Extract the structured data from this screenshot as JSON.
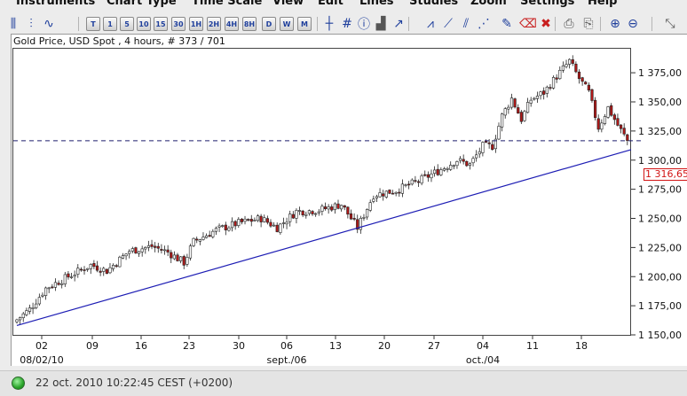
{
  "menu": [
    "Instruments",
    "Chart Type",
    "Time Scale",
    "View",
    "Edit",
    "Lines",
    "Studies",
    "Zoom",
    "Settings",
    "Help"
  ],
  "toolbar": {
    "timeframes": [
      "T",
      "1",
      "5",
      "10",
      "15",
      "30",
      "1H",
      "2H",
      "4H",
      "8H",
      "D",
      "W",
      "M"
    ],
    "tools": [
      {
        "name": "candlestick-icon",
        "glyph": "⫼"
      },
      {
        "name": "bar-chart-icon",
        "glyph": "⫶"
      },
      {
        "name": "line-chart-icon",
        "glyph": "∿"
      },
      {
        "name": "crosshair-icon",
        "glyph": "┼"
      },
      {
        "name": "grid-icon",
        "glyph": "#"
      },
      {
        "name": "info-icon",
        "glyph": "ⓘ"
      },
      {
        "name": "volume-icon",
        "glyph": "▟"
      },
      {
        "name": "trendline-icon",
        "glyph": "↗"
      },
      {
        "name": "channel-icon",
        "glyph": "⩘"
      },
      {
        "name": "fan-icon",
        "glyph": "⟋"
      },
      {
        "name": "fibonacci-icon",
        "glyph": "⫽"
      },
      {
        "name": "cycle-icon",
        "glyph": "⋰"
      },
      {
        "name": "pencil-icon",
        "glyph": "✎"
      },
      {
        "name": "eraser-icon",
        "glyph": "⌫"
      },
      {
        "name": "delete-icon",
        "glyph": "✖"
      },
      {
        "name": "print-icon",
        "glyph": "⎙"
      },
      {
        "name": "print-preview-icon",
        "glyph": "⎘"
      },
      {
        "name": "zoom-in-icon",
        "glyph": "⊕"
      },
      {
        "name": "zoom-out-icon",
        "glyph": "⊖"
      },
      {
        "name": "expand-icon",
        "glyph": "⤡"
      }
    ]
  },
  "chart_header": "Gold Price, USD Spot , 4 hours, # 373 / 701",
  "chart_data": {
    "type": "candlestick",
    "title": "Gold Price, USD Spot , 4 hours, # 373 / 701",
    "y_ticks": [
      "1 375,00",
      "1 350,00",
      "1 325,00",
      "1 300,00",
      "1 275,00",
      "1 250,00",
      "1 225,00",
      "1 200,00",
      "1 175,00",
      "1 150,00"
    ],
    "y_tick_values": [
      1375,
      1350,
      1325,
      1300,
      1275,
      1250,
      1225,
      1200,
      1175,
      1150
    ],
    "ylim": [
      1150,
      1390
    ],
    "x_ticks": [
      "02",
      "09",
      "16",
      "23",
      "30",
      "06",
      "13",
      "20",
      "27",
      "04",
      "11",
      "18"
    ],
    "x_secondary_labels": [
      "08/02/10",
      "sept./06",
      "oct./04"
    ],
    "current_price": "1 316,65",
    "current_price_value": 1316.65,
    "close_path": [
      [
        0,
        1163
      ],
      [
        4,
        1172
      ],
      [
        9,
        1190
      ],
      [
        16,
        1200
      ],
      [
        23,
        1210
      ],
      [
        28,
        1205
      ],
      [
        35,
        1222
      ],
      [
        42,
        1226
      ],
      [
        47,
        1221
      ],
      [
        52,
        1212
      ],
      [
        55,
        1230
      ],
      [
        62,
        1240
      ],
      [
        69,
        1246
      ],
      [
        76,
        1250
      ],
      [
        81,
        1242
      ],
      [
        87,
        1256
      ],
      [
        94,
        1257
      ],
      [
        101,
        1262
      ],
      [
        106,
        1242
      ],
      [
        111,
        1270
      ],
      [
        118,
        1274
      ],
      [
        125,
        1282
      ],
      [
        132,
        1292
      ],
      [
        137,
        1300
      ],
      [
        141,
        1296
      ],
      [
        145,
        1312
      ],
      [
        148,
        1312
      ],
      [
        151,
        1338
      ],
      [
        154,
        1353
      ],
      [
        157,
        1335
      ],
      [
        160,
        1352
      ],
      [
        164,
        1358
      ],
      [
        168,
        1372
      ],
      [
        172,
        1385
      ],
      [
        175,
        1370
      ],
      [
        178,
        1358
      ],
      [
        181,
        1328
      ],
      [
        184,
        1345
      ],
      [
        187,
        1330
      ],
      [
        190,
        1316.65
      ]
    ],
    "trendline": {
      "from": [
        0,
        1158
      ],
      "to": [
        190,
        1309
      ]
    }
  },
  "status": {
    "indicator_color": "#2aa42a",
    "text": "22 oct. 2010 10:22:45  CEST (+0200)"
  },
  "colors": {
    "bull_candle": "#ffffff",
    "bear_candle": "#b01818",
    "trendline": "#1d1db4",
    "price_line": "#1d1d6e",
    "price_label": "#d21414"
  }
}
